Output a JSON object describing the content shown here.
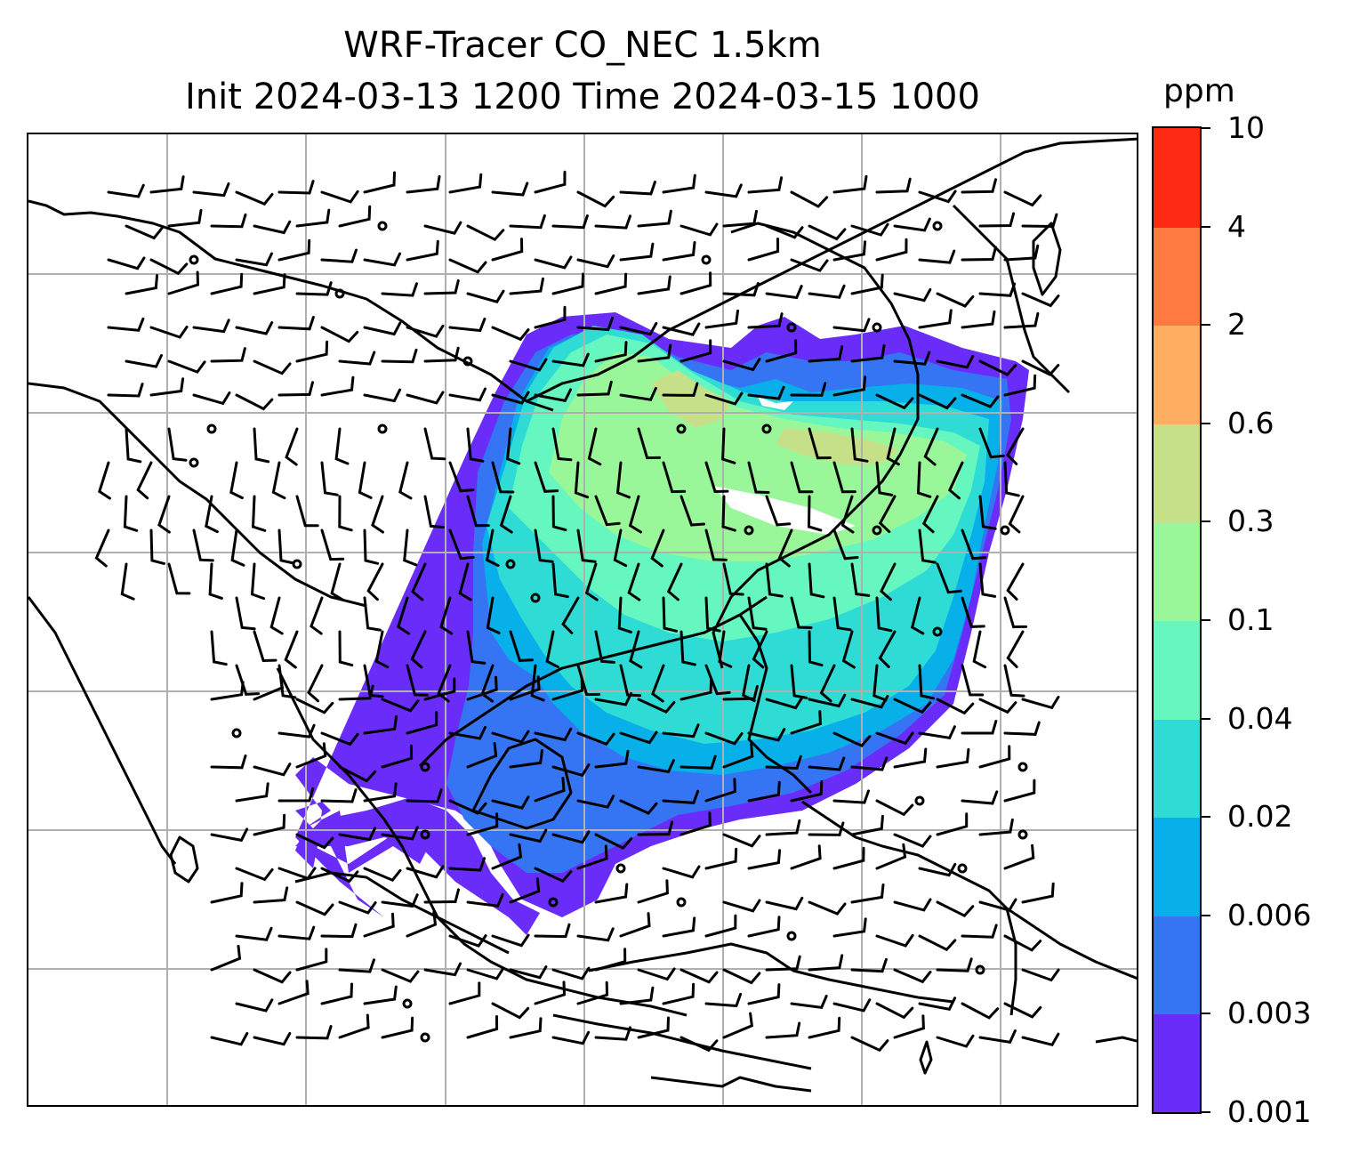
{
  "title": {
    "line1": "WRF-Tracer CO_NEC 1.5km",
    "line2": "Init 2024-03-13 1200 Time 2024-03-15 1000"
  },
  "colorbar": {
    "unit": "ppm",
    "levels": [
      "0.001",
      "0.003",
      "0.006",
      "0.02",
      "0.04",
      "0.1",
      "0.3",
      "0.6",
      "2",
      "4",
      "10"
    ],
    "colors": [
      "#6a2cf8",
      "#3574f3",
      "#08b0e9",
      "#2fdcd5",
      "#66f6bf",
      "#99f799",
      "#c6e08a",
      "#fdae61",
      "#ff7a41",
      "#ff2a14"
    ]
  },
  "map": {
    "gridlines": true,
    "coastline_color": "#000000",
    "barb_color": "#000000"
  }
}
